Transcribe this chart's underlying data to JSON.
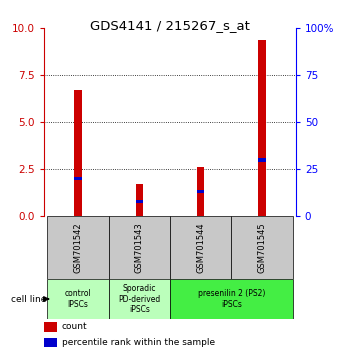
{
  "title": "GDS4141 / 215267_s_at",
  "samples": [
    "GSM701542",
    "GSM701543",
    "GSM701544",
    "GSM701545"
  ],
  "red_values": [
    6.7,
    1.7,
    2.6,
    9.4
  ],
  "blue_values": [
    2.0,
    0.8,
    1.3,
    3.0
  ],
  "ylim_left": [
    0,
    10
  ],
  "ylim_right": [
    0,
    100
  ],
  "yticks_left": [
    0,
    2.5,
    5.0,
    7.5,
    10
  ],
  "yticks_right": [
    0,
    25,
    50,
    75,
    100
  ],
  "ytick_right_labels": [
    "0",
    "25",
    "50",
    "75",
    "100%"
  ],
  "bar_width": 0.12,
  "red_color": "#cc0000",
  "blue_color": "#0000cc",
  "sample_box_color": "#c8c8c8",
  "legend_red": "count",
  "legend_blue": "percentile rank within the sample",
  "bar_positions": [
    0,
    1,
    2,
    3
  ],
  "group_defs": [
    [
      0,
      0,
      "control\nIPSCs",
      "#bbffbb"
    ],
    [
      1,
      1,
      "Sporadic\nPD-derived\niPSCs",
      "#bbffbb"
    ],
    [
      2,
      3,
      "presenilin 2 (PS2)\niPSCs",
      "#44ee44"
    ]
  ]
}
